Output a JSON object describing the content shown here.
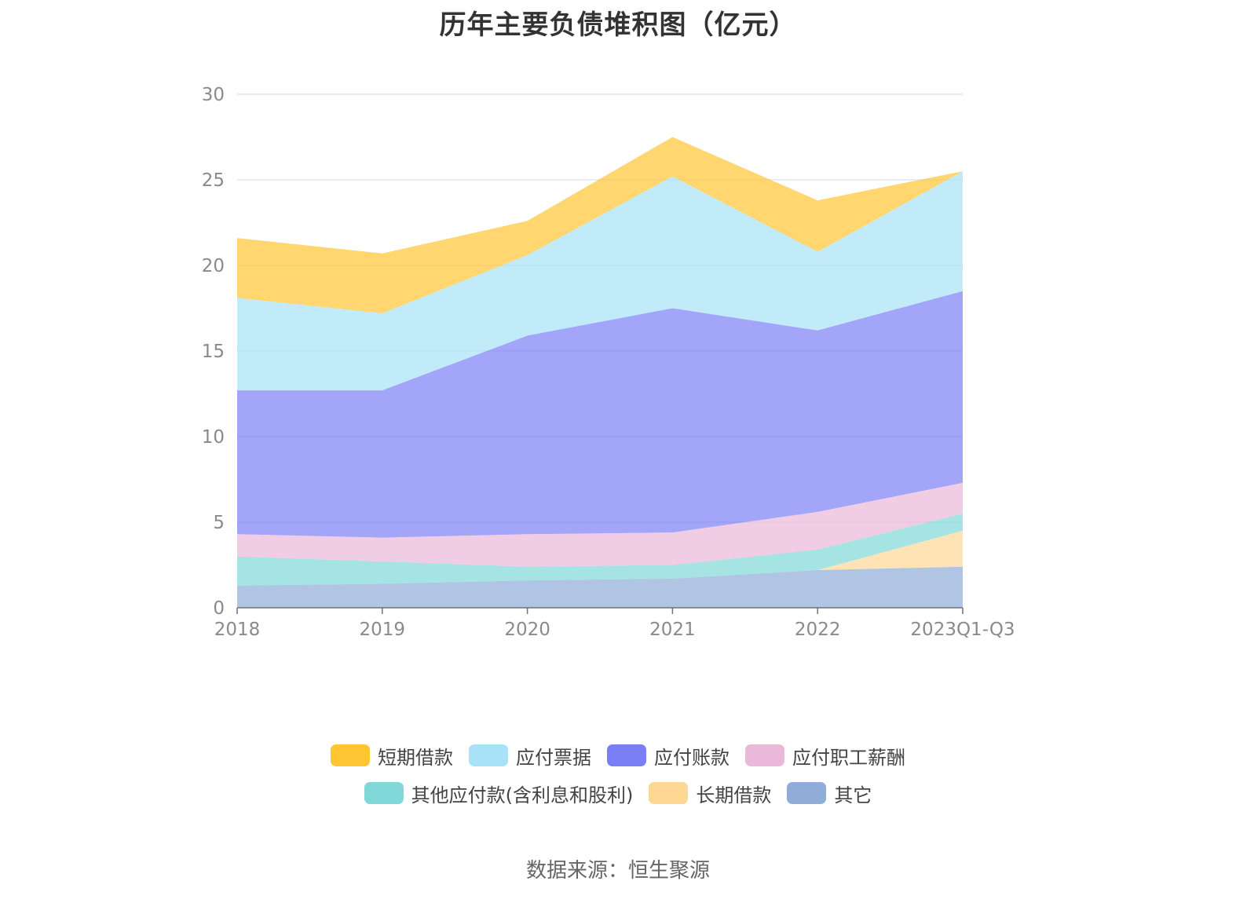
{
  "chart_data": {
    "type": "area",
    "stacked": true,
    "title": "历年主要负债堆积图（亿元）",
    "categories": [
      "2018",
      "2019",
      "2020",
      "2021",
      "2022",
      "2023Q1-Q3"
    ],
    "ylim": [
      0,
      30
    ],
    "yticks": [
      0,
      5,
      10,
      15,
      20,
      25,
      30
    ],
    "grid": true,
    "legend_position": "bottom",
    "series": [
      {
        "name": "其它",
        "color": "#8fadd8",
        "values": [
          1.3,
          1.4,
          1.6,
          1.7,
          2.2,
          2.4
        ]
      },
      {
        "name": "长期借款",
        "color": "#fed795",
        "values": [
          0,
          0,
          0,
          0,
          0,
          2.1
        ]
      },
      {
        "name": "其他应付款(含利息和股利)",
        "color": "#80d8d8",
        "values": [
          1.7,
          1.3,
          0.8,
          0.8,
          1.2,
          1.0
        ]
      },
      {
        "name": "应付职工薪酬",
        "color": "#eab8d8",
        "values": [
          1.3,
          1.4,
          1.9,
          1.9,
          2.2,
          1.8
        ]
      },
      {
        "name": "应付账款",
        "color": "#7b7ff5",
        "values": [
          8.4,
          8.6,
          11.6,
          13.1,
          10.6,
          11.2
        ]
      },
      {
        "name": "应付票据",
        "color": "#a8e2f8",
        "values": [
          5.4,
          4.5,
          4.7,
          7.7,
          4.6,
          7.0
        ]
      },
      {
        "name": "短期借款",
        "color": "#ffc533",
        "values": [
          3.5,
          3.5,
          2.0,
          2.3,
          3.0,
          0
        ]
      }
    ],
    "legend_order": [
      "短期借款",
      "应付票据",
      "应付账款",
      "应付职工薪酬",
      "其他应付款(含利息和股利)",
      "长期借款",
      "其它"
    ]
  },
  "source_text": "数据来源：恒生聚源"
}
